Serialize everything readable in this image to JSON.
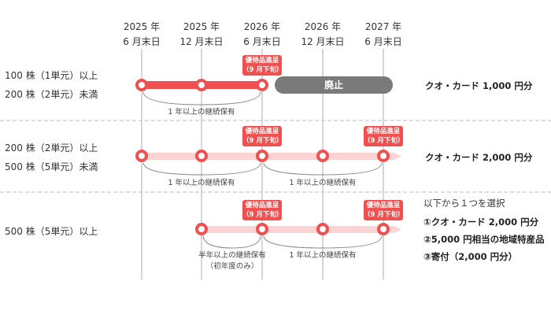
{
  "columns": [
    {
      "year": "2025 年",
      "date": "6 月末日"
    },
    {
      "year": "2025 年",
      "date": "12 月末日"
    },
    {
      "year": "2026 年",
      "date": "6 月末日"
    },
    {
      "year": "2026 年",
      "date": "12 月末日"
    },
    {
      "year": "2027 年",
      "date": "6 月末日"
    }
  ],
  "badge": {
    "line1": "優待品進呈",
    "line2": "（9 月下旬）"
  },
  "rows": [
    {
      "label1": "100 株（1単元）以上",
      "label2": "200 株（2単元）未満",
      "abolished": "廃止",
      "note1": "1 年以上の継続保有",
      "reward": "クオ・カード 1,000 円分"
    },
    {
      "label1": "200 株（2単元）以上",
      "label2": "500 株（5単元）未満",
      "note1": "1 年以上の継続保有",
      "note2": "1 年以上の継続保有",
      "reward": "クオ・カード 2,000 円分"
    },
    {
      "label1": "500 株（5単元）以上",
      "note1": "半年以上の継続保有",
      "note1b": "（初年度のみ）",
      "note2": "1 年以上の継続保有",
      "choice_title": "以下から１つを選択",
      "choices": [
        "①クオ・カード 2,000 円分",
        "②5,000 円相当の地域特産品",
        "③寄付（2,000 円分）"
      ]
    }
  ],
  "colors": {
    "accent": "#f05050",
    "light": "#fbd3d3",
    "abolished": "#7a7a7a"
  }
}
